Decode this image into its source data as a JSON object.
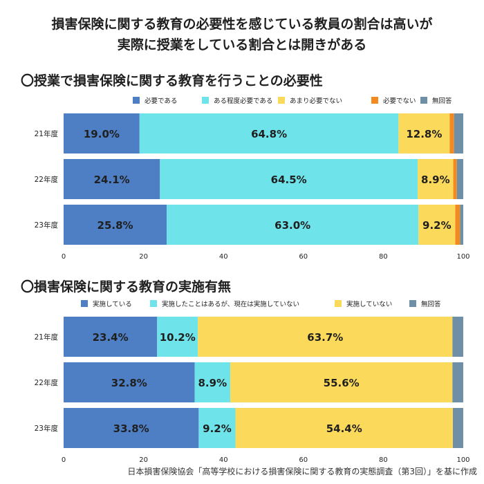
{
  "title": {
    "line1": "損害保険に関する教育の必要性を感じている教員の割合は高いが",
    "line2": "実際に授業をしている割合とは開きがある"
  },
  "source": "日本損害保険協会「高等学校における損害保険に関する教育の実態調査（第3回）」を基に作成",
  "chart_data": [
    {
      "type": "bar",
      "orientation": "horizontal-stacked",
      "title": "〇授業で損害保険に関する教育を行うことの必要性",
      "categories": [
        "21年度",
        "22年度",
        "23年度"
      ],
      "series": [
        {
          "name": "必要である",
          "values": [
            19.0,
            24.1,
            25.8
          ],
          "color": "#4e7fc4",
          "labels": [
            "19.0%",
            "24.1%",
            "25.8%"
          ]
        },
        {
          "name": "ある程度必要である",
          "values": [
            64.8,
            64.5,
            63.0
          ],
          "color": "#6ee3ea",
          "labels": [
            "64.8%",
            "64.5%",
            "63.0%"
          ]
        },
        {
          "name": "あまり必要でない",
          "values": [
            12.8,
            8.9,
            9.2
          ],
          "color": "#fbd95a",
          "labels": [
            "12.8%",
            "8.9%",
            "9.2%"
          ]
        },
        {
          "name": "必要でない",
          "values": [
            1.1,
            0.9,
            1.2
          ],
          "color": "#f28a1f",
          "labels": [
            "",
            "",
            ""
          ]
        },
        {
          "name": "無回答",
          "values": [
            2.3,
            1.6,
            0.8
          ],
          "color": "#6f8fa6",
          "labels": [
            "",
            "",
            ""
          ]
        }
      ],
      "xlim": [
        0,
        100
      ],
      "xticks": [
        "0",
        "20",
        "40",
        "60",
        "80",
        "100"
      ],
      "legend": "top",
      "grid": false
    },
    {
      "type": "bar",
      "orientation": "horizontal-stacked",
      "title": "〇損害保険に関する教育の実施有無",
      "categories": [
        "21年度",
        "22年度",
        "23年度"
      ],
      "series": [
        {
          "name": "実施している",
          "values": [
            23.4,
            32.8,
            33.8
          ],
          "color": "#4e7fc4",
          "labels": [
            "23.4%",
            "32.8%",
            "33.8%"
          ]
        },
        {
          "name": "実施したことはあるが、現在は実施していない",
          "values": [
            10.2,
            8.9,
            9.2
          ],
          "color": "#6ee3ea",
          "labels": [
            "10.2%",
            "8.9%",
            "9.2%"
          ]
        },
        {
          "name": "実施していない",
          "values": [
            63.7,
            55.6,
            54.4
          ],
          "color": "#fbd95a",
          "labels": [
            "63.7%",
            "55.6%",
            "54.4%"
          ]
        },
        {
          "name": "無回答",
          "values": [
            2.7,
            2.7,
            2.6
          ],
          "color": "#6f8fa6",
          "labels": [
            "",
            "",
            ""
          ]
        }
      ],
      "xlim": [
        0,
        100
      ],
      "xticks": [
        "0",
        "20",
        "40",
        "60",
        "80",
        "100"
      ],
      "legend": "top",
      "grid": false
    }
  ]
}
